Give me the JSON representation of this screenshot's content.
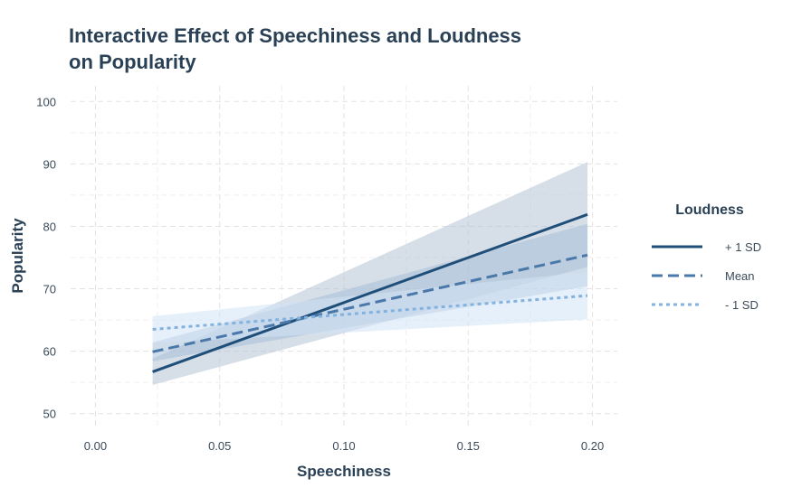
{
  "chart_data": {
    "type": "line",
    "title_lines": [
      "Interactive Effect of Speechiness and Loudness",
      "on Popularity"
    ],
    "xlabel": "Speechiness",
    "ylabel": "Popularity",
    "xlim": [
      -0.01,
      0.21
    ],
    "ylim": [
      47.5,
      102.5
    ],
    "xticks": [
      0.0,
      0.05,
      0.1,
      0.15,
      0.2
    ],
    "xtick_labels": [
      "0.00",
      "0.05",
      "0.10",
      "0.15",
      "0.20"
    ],
    "yticks": [
      50,
      60,
      70,
      80,
      90,
      100
    ],
    "ytick_labels": [
      "50",
      "60",
      "70",
      "80",
      "90",
      "100"
    ],
    "grid": true,
    "legend": {
      "title": "Loudness",
      "position": "right"
    },
    "series": [
      {
        "name": "+ 1 SD",
        "color": "#1f4e79",
        "dash": "solid",
        "x": [
          0.023,
          0.198
        ],
        "y": [
          56.7,
          81.9
        ],
        "band_lower": [
          54.6,
          73.5
        ],
        "band_upper": [
          58.8,
          90.3
        ],
        "band_color": "#b4c3d6"
      },
      {
        "name": "Mean",
        "color": "#4a78a8",
        "dash": "dashed",
        "x": [
          0.023,
          0.198
        ],
        "y": [
          59.9,
          75.4
        ],
        "band_lower": [
          58.4,
          70.4
        ],
        "band_upper": [
          61.4,
          80.4
        ],
        "band_color": "#a8bfd9"
      },
      {
        "name": "- 1 SD",
        "color": "#84b2de",
        "dash": "dotted",
        "x": [
          0.023,
          0.198
        ],
        "y": [
          63.5,
          68.9
        ],
        "band_lower": [
          61.3,
          65.1
        ],
        "band_upper": [
          65.6,
          72.7
        ],
        "band_color": "#d2e4f5"
      }
    ]
  }
}
